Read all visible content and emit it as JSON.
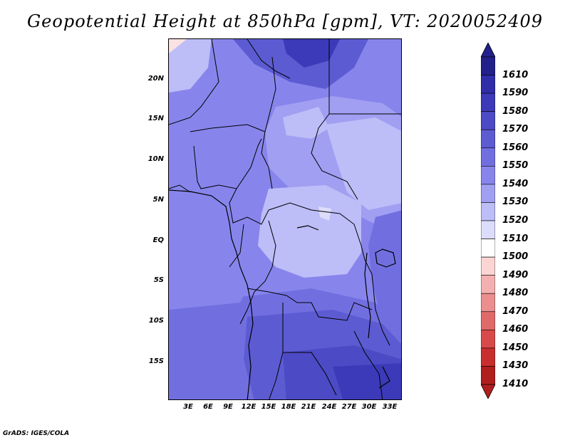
{
  "title": "Geopotential Height at 850hPa [gpm], VT: 2020052409",
  "footer": "GrADS: IGES/COLA",
  "lat_labels": [
    "20N",
    "15N",
    "10N",
    "5N",
    "EQ",
    "5S",
    "10S",
    "15S"
  ],
  "lon_labels": [
    "3E",
    "6E",
    "9E",
    "12E",
    "15E",
    "18E",
    "21E",
    "24E",
    "27E",
    "30E",
    "33E"
  ],
  "legend": {
    "levels": [
      "1610",
      "1590",
      "1580",
      "1570",
      "1560",
      "1550",
      "1540",
      "1530",
      "1520",
      "1510",
      "1500",
      "1490",
      "1480",
      "1470",
      "1460",
      "1450",
      "1430",
      "1410"
    ],
    "colors": [
      "#22208a",
      "#2f2da8",
      "#3c3ab8",
      "#4c4ac4",
      "#5d5bd2",
      "#716fe0",
      "#8785ec",
      "#a19ff2",
      "#bdbdf8",
      "#dcdcfb",
      "#ffffff",
      "#fbd4d4",
      "#f4b0b0",
      "#ec8e8e",
      "#e06a6a",
      "#d84a4a",
      "#c82e2e",
      "#b01e1e"
    ]
  }
}
